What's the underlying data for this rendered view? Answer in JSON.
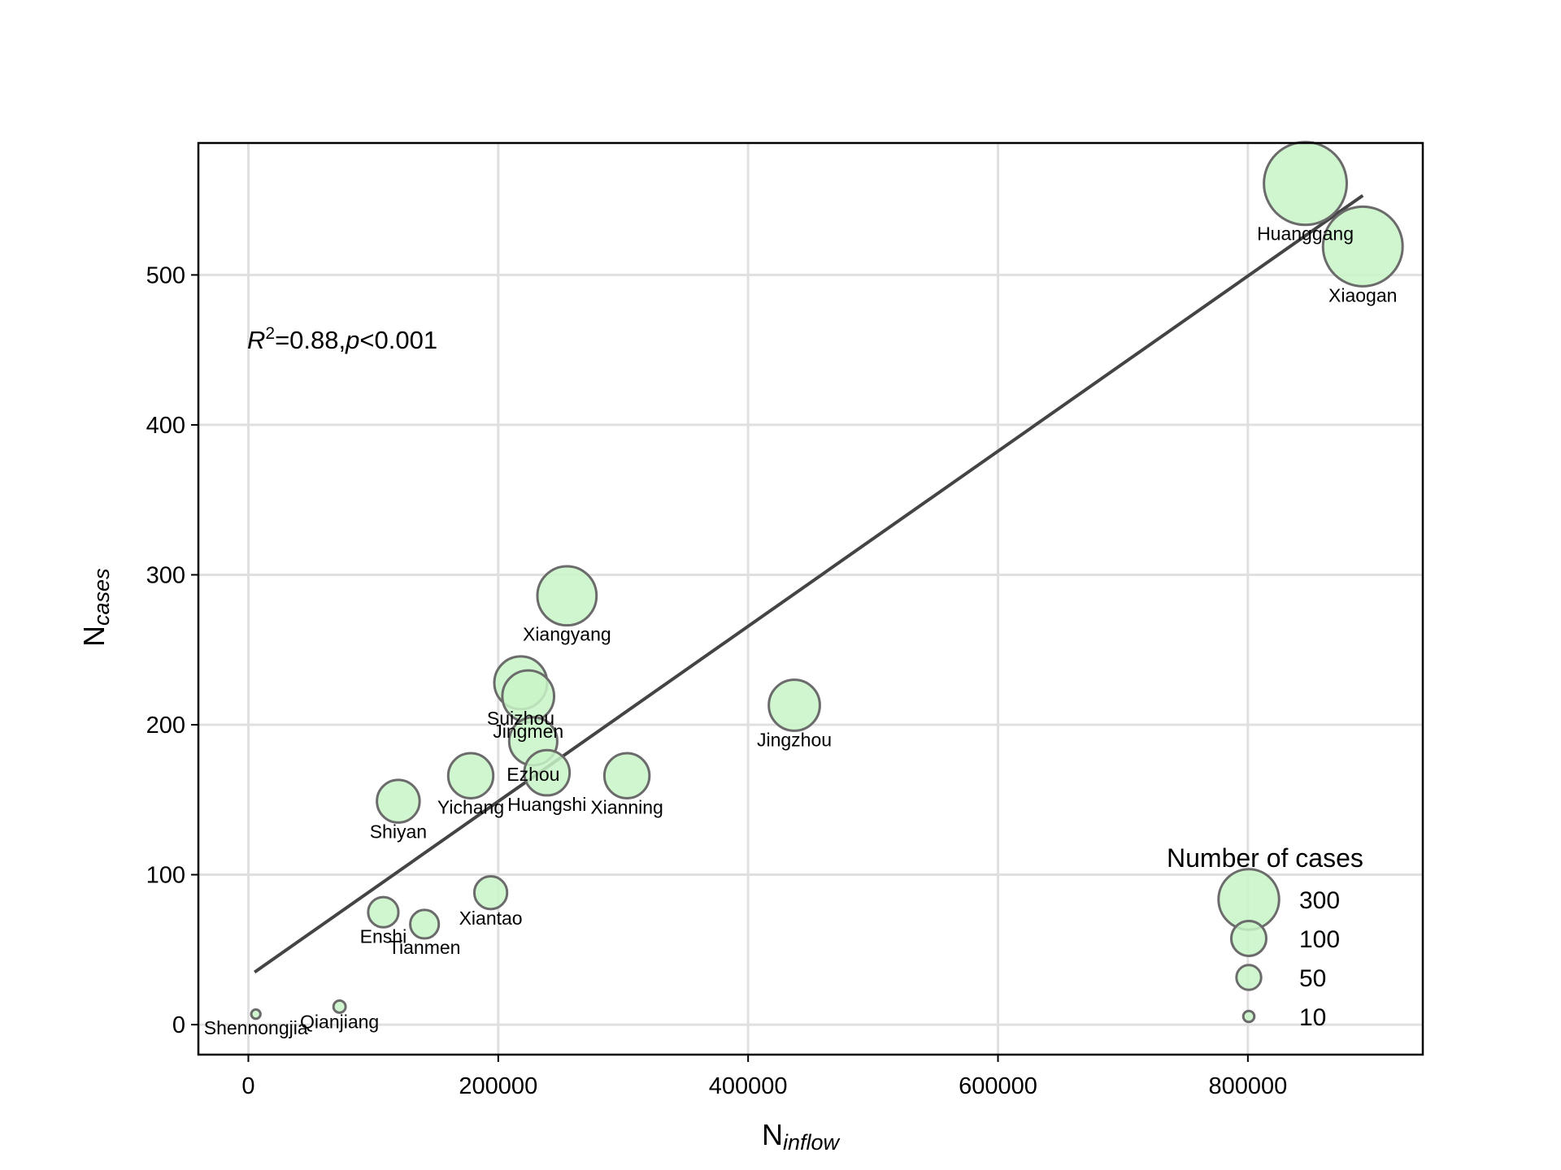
{
  "chart_data": {
    "type": "scatter",
    "title": "",
    "xlabel": {
      "main": "N",
      "sub": "inflow"
    },
    "ylabel": {
      "main": "N",
      "sub": "cases"
    },
    "xlim": [
      -40000,
      940000
    ],
    "ylim": [
      -20,
      588
    ],
    "xticks": [
      0,
      200000,
      400000,
      600000,
      800000
    ],
    "xtick_labels": [
      "0",
      "200000",
      "400000",
      "600000",
      "800000"
    ],
    "yticks": [
      0,
      100,
      200,
      300,
      400,
      500
    ],
    "ytick_labels": [
      "0",
      "100",
      "200",
      "300",
      "400",
      "500"
    ],
    "grid": true,
    "points": [
      {
        "name": "Huanggang",
        "x": 846000,
        "y": 561
      },
      {
        "name": "Xiaogan",
        "x": 892000,
        "y": 519
      },
      {
        "name": "Xiangyang",
        "x": 255000,
        "y": 286
      },
      {
        "name": "Suizhou",
        "x": 218000,
        "y": 228
      },
      {
        "name": "Jingmen",
        "x": 224000,
        "y": 219
      },
      {
        "name": "Jingzhou",
        "x": 437000,
        "y": 213
      },
      {
        "name": "Ezhou",
        "x": 228000,
        "y": 189
      },
      {
        "name": "Yichang",
        "x": 178000,
        "y": 166
      },
      {
        "name": "Huangshi",
        "x": 239000,
        "y": 168
      },
      {
        "name": "Xianning",
        "x": 303000,
        "y": 166
      },
      {
        "name": "Shiyan",
        "x": 120000,
        "y": 149
      },
      {
        "name": "Xiantao",
        "x": 194000,
        "y": 88
      },
      {
        "name": "Enshi",
        "x": 108000,
        "y": 75
      },
      {
        "name": "Tianmen",
        "x": 141000,
        "y": 67
      },
      {
        "name": "Shennongjia",
        "x": 6000,
        "y": 7
      },
      {
        "name": "Qianjiang",
        "x": 73000,
        "y": 12
      }
    ],
    "fit_line": {
      "x": [
        5000,
        892000
      ],
      "y": [
        35,
        553
      ]
    },
    "annotation": {
      "r_symbol": "R",
      "r_exp": "2",
      "r_value": "=0.88,",
      "p_symbol": "p",
      "p_value": "<0.001"
    },
    "legend": {
      "title": "Number of cases",
      "placement": "bottom-right",
      "entries": [
        {
          "label": "300",
          "value": 300
        },
        {
          "label": "100",
          "value": 100
        },
        {
          "label": "50",
          "value": 50
        },
        {
          "label": "10",
          "value": 10
        }
      ]
    },
    "colors": {
      "marker_fill": "#c8f5c8",
      "marker_edge": "#6b6b6b",
      "fit_line": "#444444",
      "grid": "#e0e0e0"
    }
  }
}
